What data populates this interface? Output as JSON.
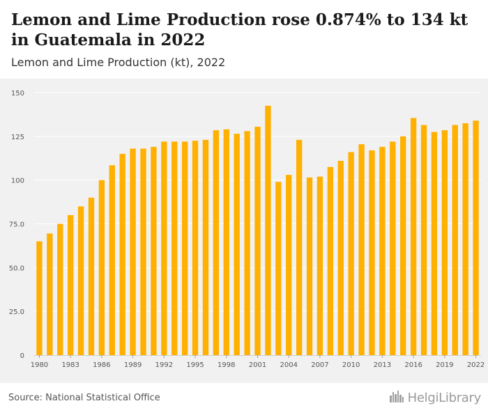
{
  "header": {
    "title": "Lemon and Lime Production rose 0.874% to 134 kt in Guatemala in 2022",
    "subtitle": "Lemon and Lime Production (kt), 2022"
  },
  "footer": {
    "source": "Source: National Statistical Office",
    "brand": "HelgiLibrary",
    "brand_icon": "city-skyline-icon"
  },
  "colors": {
    "bar": "#FFB000",
    "plot_background": "#F1F1F1",
    "grid": "#FFFFFF"
  },
  "chart_data": {
    "type": "bar",
    "title": "Lemon and Lime Production (kt), 2022",
    "xlabel": "",
    "ylabel": "",
    "ylim": [
      0,
      150
    ],
    "grid": true,
    "legend": "none",
    "y_ticks": [
      "0",
      "25.0",
      "50.0",
      "75.0",
      "100",
      "125",
      "150"
    ],
    "x_tick_labels": [
      "1980",
      "1983",
      "1986",
      "1989",
      "1992",
      "1995",
      "1998",
      "2001",
      "2004",
      "2007",
      "2010",
      "2013",
      "2016",
      "2019",
      "2022"
    ],
    "categories": [
      "1980",
      "1981",
      "1982",
      "1983",
      "1984",
      "1985",
      "1986",
      "1987",
      "1988",
      "1989",
      "1990",
      "1991",
      "1992",
      "1993",
      "1994",
      "1995",
      "1996",
      "1997",
      "1998",
      "1999",
      "2000",
      "2001",
      "2002",
      "2003",
      "2004",
      "2005",
      "2006",
      "2007",
      "2008",
      "2009",
      "2010",
      "2011",
      "2012",
      "2013",
      "2014",
      "2015",
      "2016",
      "2017",
      "2018",
      "2019",
      "2020",
      "2021",
      "2022"
    ],
    "values": [
      65,
      69.5,
      75,
      80,
      85,
      90,
      100,
      108.5,
      115,
      118,
      118,
      119,
      122,
      122,
      122,
      122.5,
      123,
      128.5,
      129,
      126.5,
      128,
      130.5,
      142.5,
      99,
      103,
      123,
      101.5,
      102,
      107.5,
      111,
      116,
      120.5,
      117,
      119,
      122,
      125,
      135.5,
      131.5,
      127.5,
      128.5,
      131.5,
      132.5,
      134
    ]
  }
}
